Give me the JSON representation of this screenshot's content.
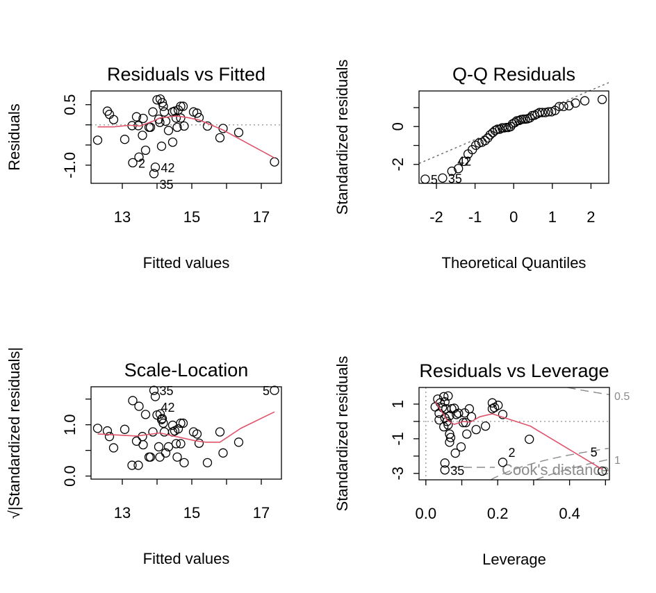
{
  "colors": {
    "points": "#000000",
    "smooth": "#DF536B",
    "reference": "#999999",
    "cooks": "#8A8A8A"
  },
  "chart_data": [
    {
      "type": "scatter",
      "title": "Residuals vs Fitted",
      "xlabel": "Fitted values",
      "ylabel": "Residuals",
      "xlim": [
        12.1,
        17.58
      ],
      "ylim": [
        -1.45,
        0.84
      ],
      "xticks": [
        13,
        14,
        15,
        16,
        17
      ],
      "xtick_labels": [
        "13",
        "15",
        "17"
      ],
      "yticks": [
        -1.0,
        -0.5,
        0,
        0.5
      ],
      "ytick_labels": [
        "-1.0",
        "0.5"
      ],
      "grid": false,
      "reference_line": {
        "type": "horizontal",
        "y": 0,
        "style": "dotted"
      },
      "x": [
        12.29,
        12.57,
        12.63,
        12.75,
        13.07,
        13.28,
        13.3,
        13.41,
        13.46,
        13.48,
        13.58,
        13.6,
        13.67,
        13.77,
        13.81,
        13.88,
        13.95,
        13.91,
        14.0,
        14.09,
        14.15,
        14.18,
        14.05,
        14.08,
        14.13,
        14.21,
        14.25,
        14.33,
        14.45,
        14.45,
        14.51,
        14.55,
        14.58,
        14.61,
        14.68,
        14.75,
        14.68,
        14.78,
        15.05,
        15.15,
        15.21,
        15.45,
        15.81,
        15.9,
        16.35,
        17.38
      ],
      "y": [
        -0.38,
        0.34,
        0.26,
        0.13,
        -0.36,
        -0.02,
        -0.94,
        0.2,
        -0.02,
        -0.8,
        -0.26,
        0.16,
        -0.63,
        -0.06,
        -0.06,
        0.32,
        -1.05,
        -1.21,
        0.62,
        0.64,
        0.55,
        0.46,
        0.14,
        0.06,
        -0.53,
        0.32,
        0.09,
        -0.14,
        -0.43,
        0.32,
        0.34,
        0.17,
        -0.06,
        0.37,
        0.46,
        0.46,
        0.17,
        -0.03,
        0.32,
        0.29,
        0.18,
        -0.03,
        -0.32,
        -0.09,
        -0.19,
        -0.92
      ],
      "point_labels": [
        {
          "index": 6,
          "text": "2",
          "side": "right"
        },
        {
          "index": 16,
          "text": "42",
          "side": "right"
        },
        {
          "index": 17,
          "text": "35",
          "side": "right"
        }
      ],
      "smooth": {
        "x": [
          12.29,
          12.75,
          13.21,
          13.51,
          13.88,
          14.08,
          14.55,
          14.88,
          15.21,
          15.88,
          17.38
        ],
        "y": [
          -0.05,
          -0.05,
          -0.01,
          -0.03,
          0.09,
          0.17,
          0.22,
          0.18,
          0.12,
          -0.12,
          -0.82
        ]
      }
    },
    {
      "type": "scatter",
      "title": "Q-Q Residuals",
      "xlabel": "Theoretical Quantiles",
      "ylabel": "Standardized residuals",
      "xlim": [
        -2.45,
        2.46
      ],
      "ylim": [
        -3.0,
        1.88
      ],
      "xticks": [
        -2,
        -1,
        0,
        1,
        2
      ],
      "xtick_labels": [
        "-2",
        "-1",
        "0",
        "1",
        "2"
      ],
      "yticks": [
        -2,
        -1,
        0,
        1
      ],
      "ytick_labels": [
        "-2",
        "0"
      ],
      "grid": false,
      "reference_line": {
        "type": "abline",
        "intercept": 0.18,
        "slope": 0.87,
        "style": "dotted"
      },
      "x": [
        -2.29,
        -1.84,
        -1.6,
        -1.43,
        -1.29,
        -1.18,
        -1.07,
        -0.98,
        -0.9,
        -0.82,
        -0.74,
        -0.67,
        -0.61,
        -0.54,
        -0.48,
        -0.42,
        -0.36,
        -0.3,
        -0.25,
        -0.19,
        -0.14,
        -0.08,
        -0.03,
        0.03,
        0.08,
        0.14,
        0.19,
        0.25,
        0.3,
        0.36,
        0.42,
        0.48,
        0.54,
        0.61,
        0.67,
        0.74,
        0.82,
        0.9,
        0.98,
        1.07,
        1.18,
        1.29,
        1.43,
        1.6,
        1.84,
        2.29
      ],
      "y": [
        -2.78,
        -2.72,
        -2.36,
        -2.22,
        -1.84,
        -1.45,
        -1.22,
        -0.99,
        -0.87,
        -0.83,
        -0.74,
        -0.6,
        -0.44,
        -0.32,
        -0.21,
        -0.14,
        -0.14,
        -0.07,
        -0.07,
        -0.05,
        -0.05,
        0.0,
        0.14,
        0.21,
        0.3,
        0.32,
        0.37,
        0.39,
        0.39,
        0.41,
        0.46,
        0.58,
        0.6,
        0.67,
        0.74,
        0.74,
        0.74,
        0.78,
        0.78,
        0.85,
        1.06,
        1.06,
        1.1,
        1.24,
        1.36,
        1.43
      ],
      "point_labels": [
        {
          "index": 0,
          "text": "5",
          "side": "right"
        },
        {
          "index": 1,
          "text": "35",
          "side": "right"
        },
        {
          "index": 2,
          "text": "42",
          "side": "right"
        }
      ]
    },
    {
      "type": "scatter",
      "title": "Scale-Location",
      "xlabel": "Fitted values",
      "ylabel": "√|Standardized residuals|",
      "xlim": [
        12.1,
        17.58
      ],
      "ylim": [
        -0.06,
        1.74
      ],
      "xticks": [
        13,
        14,
        15,
        16,
        17
      ],
      "xtick_labels": [
        "13",
        "15",
        "17"
      ],
      "yticks": [
        0.0,
        0.5,
        1.0,
        1.5
      ],
      "ytick_labels": [
        "0.0",
        "1.0"
      ],
      "grid": false,
      "x": [
        12.29,
        12.57,
        12.63,
        12.75,
        13.07,
        13.28,
        13.3,
        13.41,
        13.46,
        13.48,
        13.58,
        13.6,
        13.67,
        13.77,
        13.81,
        13.88,
        13.95,
        13.91,
        14.0,
        14.09,
        14.15,
        14.18,
        14.05,
        14.08,
        14.13,
        14.21,
        14.25,
        14.33,
        14.45,
        14.45,
        14.51,
        14.55,
        14.58,
        14.61,
        14.68,
        14.75,
        14.68,
        14.78,
        15.05,
        15.15,
        15.21,
        15.45,
        15.81,
        15.9,
        16.35,
        17.38
      ],
      "y": [
        0.93,
        0.88,
        0.77,
        0.55,
        0.91,
        0.21,
        1.47,
        0.68,
        0.21,
        1.36,
        0.77,
        0.61,
        1.2,
        0.37,
        0.37,
        0.86,
        1.55,
        1.67,
        1.19,
        1.21,
        1.12,
        1.03,
        0.57,
        0.37,
        1.1,
        0.86,
        0.45,
        0.57,
        0.99,
        0.86,
        0.88,
        0.63,
        0.37,
        0.92,
        1.03,
        1.03,
        0.63,
        0.26,
        0.86,
        0.82,
        0.64,
        0.26,
        0.86,
        0.45,
        0.66,
        1.67
      ],
      "point_labels": [
        {
          "index": 17,
          "text": "35",
          "side": "right"
        },
        {
          "index": 16,
          "text": "42",
          "side": "right"
        },
        {
          "index": 45,
          "text": "5",
          "side": "left"
        }
      ],
      "smooth": {
        "x": [
          12.29,
          13.41,
          14.08,
          15.08,
          15.41,
          15.81,
          16.41,
          17.38
        ],
        "y": [
          0.82,
          0.78,
          0.84,
          0.69,
          0.66,
          0.66,
          0.93,
          1.25
        ]
      }
    },
    {
      "type": "scatter",
      "title": "Residuals vs Leverage",
      "xlabel": "Leverage",
      "ylabel": "Standardized residuals",
      "xlim": [
        -0.019,
        0.511
      ],
      "ylim": [
        -3.37,
        1.96
      ],
      "xticks": [
        0.0,
        0.1,
        0.2,
        0.3,
        0.4,
        0.5
      ],
      "xtick_labels": [
        "0.0",
        "0.2",
        "0.4"
      ],
      "yticks": [
        -3,
        -2,
        -1,
        0,
        1
      ],
      "ytick_labels": [
        "-3",
        "-1",
        "1"
      ],
      "grid": false,
      "reference_lines": [
        {
          "type": "horizontal",
          "y": 0,
          "style": "dotted"
        },
        {
          "type": "vertical",
          "x": 0,
          "style": "dotted"
        }
      ],
      "x": [
        0.033,
        0.05,
        0.062,
        0.026,
        0.04,
        0.053,
        0.046,
        0.056,
        0.037,
        0.072,
        0.079,
        0.085,
        0.066,
        0.053,
        0.037,
        0.059,
        0.05,
        0.062,
        0.091,
        0.108,
        0.121,
        0.127,
        0.111,
        0.104,
        0.066,
        0.069,
        0.066,
        0.114,
        0.14,
        0.166,
        0.098,
        0.082,
        0.053,
        0.053,
        0.185,
        0.191,
        0.201,
        0.185,
        0.214,
        0.288,
        0.214,
        0.491
      ],
      "y": [
        1.29,
        1.43,
        1.47,
        0.84,
        1.07,
        1.13,
        0.8,
        0.73,
        0.47,
        0.73,
        0.76,
        0.4,
        0.33,
        0.2,
        0.09,
        0.0,
        -0.31,
        -0.2,
        0.47,
        0.49,
        0.73,
        0.27,
        -0.07,
        -0.07,
        -0.73,
        -0.93,
        -1.2,
        -0.73,
        -0.47,
        -0.27,
        -1.47,
        -1.83,
        -2.4,
        -2.8,
        1.07,
        0.8,
        0.93,
        0.73,
        0.4,
        -1.03,
        -2.36,
        -2.87
      ],
      "point_labels": [
        {
          "index": 33,
          "text": "35",
          "side": "right"
        },
        {
          "index": 40,
          "text": "2",
          "side": "right"
        },
        {
          "index": 41,
          "text": "5",
          "side": "left"
        }
      ],
      "smooth": {
        "x": [
          0.026,
          0.059,
          0.079,
          0.104,
          0.124,
          0.15,
          0.185,
          0.291,
          0.491
        ],
        "y": [
          1.16,
          0.07,
          -0.17,
          0.0,
          -0.04,
          0.27,
          0.44,
          -0.27,
          -2.76
        ]
      },
      "cooks_distance": {
        "levels": [
          0.5,
          1
        ],
        "contour_labels": [
          "0.5",
          "1"
        ],
        "legend": "Cook's distance",
        "style": "dashed"
      }
    }
  ]
}
